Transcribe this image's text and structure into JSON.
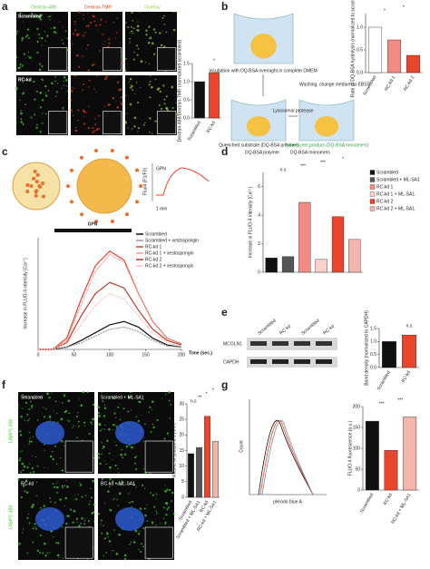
{
  "panel_labels": [
    "a",
    "b",
    "c",
    "d",
    "e",
    "f",
    "g"
  ],
  "panel_a": {
    "channels": [
      "Dextran-488",
      "Dextran-TMR",
      "Overlay"
    ],
    "rows": [
      "Scrambled",
      "RC-kd"
    ]
  },
  "panel_b": {
    "steps": [
      "Incubation with DQ-BSA overnight in complete DMEM",
      "Washing, change medium to EBSS",
      "Quenched substrate (DQ-BSA polymer)",
      "Lysosomal protease",
      "Fluorescent product (DQ-BSA monomers)"
    ],
    "legend": [
      "DQ-BSA polymer",
      "DQ-BSA monomers"
    ]
  },
  "panel_c": {
    "inset_ylabel": "Fluo4 (F1/F0)",
    "inset_marker": "GPN",
    "inset_scale": "1 min",
    "bar_label": "GPN"
  },
  "panel_e": {
    "blot_lanes": [
      "Scrambled",
      "RC-kd",
      "Scrambled",
      "RC-kd"
    ],
    "blot_rows": [
      "MCOLN1",
      "CAPDH"
    ]
  },
  "panel_f": {
    "images": [
      "Scrambled",
      "Scrambled + ML-SA1",
      "RC-kd",
      "RC-kd + ML-SA1"
    ],
    "stain": "LAMP1-488"
  },
  "panel_g": {
    "hist_ylabel": "Count",
    "hist_xlabel": "pHrodo blue A"
  },
  "chart_data": [
    {
      "type": "bar",
      "ylabel": "Dextran-488/Dextran-TMR (normalized scrambled)",
      "categories": [
        "Scrambled",
        "RC-kd"
      ],
      "values": [
        1.0,
        1.25
      ],
      "colors": [
        "#111111",
        "#e8452c"
      ],
      "ylim": [
        0,
        1.5
      ],
      "yticks": [
        {
          "value": 0,
          "label": "0.0"
        },
        0.5,
        {
          "value": 1,
          "label": "1.0"
        },
        1.5
      ],
      "annotations": [
        "*"
      ]
    },
    {
      "type": "bar",
      "ylabel": "Rate of DQ-BSA hydrolysis (normalized to scrambled)",
      "categories": [
        "Scrambled",
        "RC-kd 1",
        "RC-kd 2"
      ],
      "values": [
        1.0,
        0.72,
        0.38
      ],
      "colors": [
        "#ffffff",
        "#f28b82",
        "#e8452c"
      ],
      "ylim": [
        0,
        1.3
      ],
      "yticks": [
        {
          "value": 0,
          "label": "0.0"
        },
        0.5,
        {
          "value": 1,
          "label": "1.0"
        }
      ],
      "annotations": [
        "*",
        "*"
      ]
    },
    {
      "type": "line",
      "ylabel": "Increase in FLUO-4 intensity [Ca²⁺]",
      "xlabel": "Time (sec.)",
      "x": [
        0,
        20,
        40,
        60,
        80,
        100,
        120,
        140,
        160,
        180,
        200
      ],
      "xlim": [
        0,
        200
      ],
      "xticks": [
        0,
        50,
        100,
        150,
        200
      ],
      "ylim": [
        0,
        1
      ],
      "series": [
        {
          "name": "Scrambled",
          "color": "#111111",
          "values": [
            0,
            0,
            0.02,
            0.08,
            0.15,
            0.22,
            0.25,
            0.2,
            0.1,
            0.04,
            0.02
          ]
        },
        {
          "name": "Scrambled + xestospongin",
          "color": "#9a9a9a",
          "values": [
            0,
            0,
            0.02,
            0.06,
            0.12,
            0.18,
            0.2,
            0.16,
            0.08,
            0.03,
            0.02
          ]
        },
        {
          "name": "RC-kd 1",
          "color": "#e8452c",
          "values": [
            0,
            0,
            0.1,
            0.45,
            0.75,
            0.88,
            0.8,
            0.5,
            0.25,
            0.1,
            0.05
          ]
        },
        {
          "name": "RC-kd 1 + xestospongin",
          "color": "#f4a196",
          "values": [
            0,
            0,
            0.08,
            0.4,
            0.7,
            0.85,
            0.78,
            0.5,
            0.25,
            0.1,
            0.05
          ]
        },
        {
          "name": "RC-kd 2",
          "color": "#c0392b",
          "values": [
            0,
            0,
            0.06,
            0.3,
            0.5,
            0.6,
            0.55,
            0.35,
            0.18,
            0.08,
            0.04
          ]
        },
        {
          "name": "RC-kd 2 + xestospongin",
          "color": "#f7c6bf",
          "values": [
            0,
            0,
            0.05,
            0.22,
            0.4,
            0.5,
            0.45,
            0.3,
            0.15,
            0.06,
            0.03
          ]
        }
      ]
    },
    {
      "type": "bar",
      "ylabel": "Increase in FLUO-4 intensity [Ca²⁺]",
      "categories": [
        "Scrambled",
        "Scrambled + ML-SA1",
        "RC-kd 1",
        "RC-kd 1 + ML-SA1",
        "RC-kd 2",
        "RC-kd 2 + ML-SA1"
      ],
      "values": [
        1.0,
        1.1,
        4.9,
        0.9,
        3.9,
        2.3
      ],
      "colors": [
        "#111111",
        "#555555",
        "#f28b82",
        "#fbd0ca",
        "#e8452c",
        "#f6b5ac"
      ],
      "ylim": [
        0,
        7
      ],
      "yticks": [
        0,
        2,
        4,
        6
      ],
      "legend": true,
      "annotations": [
        "n.s",
        "***",
        "***",
        "*"
      ]
    },
    {
      "type": "bar",
      "ylabel": "Band density (normalized to CAPDH)",
      "categories": [
        "Scrambled",
        "RC-kd"
      ],
      "values": [
        1.0,
        1.25
      ],
      "colors": [
        "#111111",
        "#e8452c"
      ],
      "ylim": [
        0,
        1.5
      ],
      "yticks": [
        {
          "value": 0,
          "label": "0.0"
        },
        0.5,
        {
          "value": 1,
          "label": "1.0"
        },
        1.5
      ],
      "annotations": [
        "n.s"
      ]
    },
    {
      "type": "bar",
      "ylabel": "Volume of lysosomes (nm³)",
      "categories": [
        "Scrambled",
        "Scrambled + ML-SA1",
        "RC-kd",
        "RC-kd + ML-SA1"
      ],
      "values": [
        14,
        16,
        26,
        18
      ],
      "colors": [
        "#111111",
        "#555555",
        "#e8452c",
        "#f6b5ac"
      ],
      "ylim": [
        0,
        30
      ],
      "yticks": [
        0,
        5,
        10,
        15,
        20,
        25,
        30
      ],
      "annotations": [
        "n.s",
        "**",
        "*",
        "*"
      ]
    },
    {
      "type": "bar",
      "ylabel": "FLUO-4 fluorescence (a.u.)",
      "categories": [
        "Scrambled",
        "RC-kd",
        "RC-kd + ML-SA1"
      ],
      "values": [
        165,
        95,
        175
      ],
      "colors": [
        "#111111",
        "#e8452c",
        "#f6b5ac"
      ],
      "ylim": [
        0,
        200
      ],
      "yticks": [
        0,
        50,
        100,
        150,
        200
      ],
      "annotations": [
        "***",
        "***"
      ]
    }
  ]
}
